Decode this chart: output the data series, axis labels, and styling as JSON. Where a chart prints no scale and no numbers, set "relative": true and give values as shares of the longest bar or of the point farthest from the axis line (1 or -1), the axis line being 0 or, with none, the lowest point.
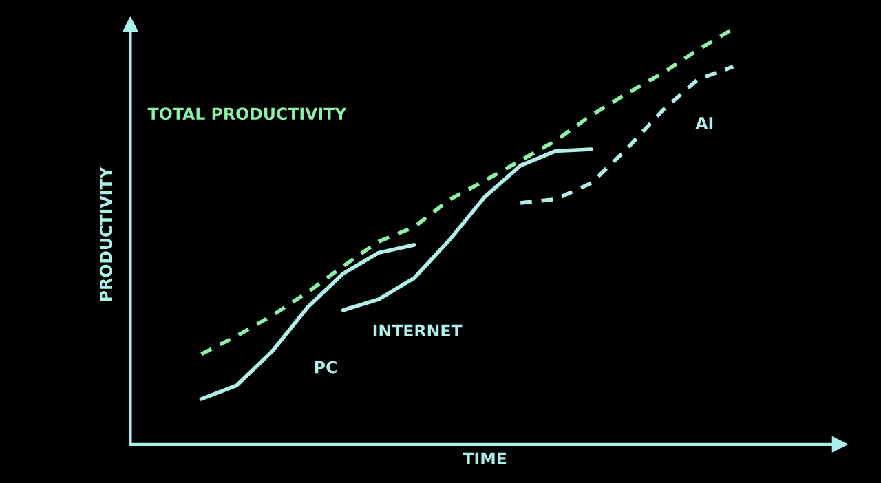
{
  "chart_data": {
    "type": "line",
    "relative": true,
    "xlabel": "TIME",
    "ylabel": "PRODUCTIVITY",
    "tick_labels": false,
    "categories": [
      null,
      null,
      null,
      null,
      null,
      null,
      null,
      null,
      null,
      null,
      null,
      null,
      null,
      null,
      null,
      null,
      null,
      null,
      null,
      null,
      null
    ],
    "series": [
      {
        "name": "TOTAL PRODUCTIVITY",
        "color": "#8ef0a8",
        "line_style": "dashed",
        "values": [
          null,
          null,
          0.217,
          0.261,
          0.31,
          0.366,
          0.429,
          0.488,
          0.523,
          0.589,
          0.635,
          0.683,
          0.731,
          0.792,
          0.844,
          0.893,
          0.949,
          1,
          null,
          null,
          null
        ]
      },
      {
        "name": "PC",
        "color": "#b0f0e8",
        "line_style": "solid",
        "values": [
          null,
          null,
          0.109,
          0.142,
          0.224,
          0.33,
          0.411,
          0.461,
          0.48,
          null,
          null,
          null,
          null,
          null,
          null,
          null,
          null,
          null,
          null,
          null,
          null
        ]
      },
      {
        "name": "INTERNET",
        "color": "#b0f0e8",
        "line_style": "solid",
        "values": [
          null,
          null,
          null,
          null,
          null,
          null,
          0.323,
          0.349,
          0.4,
          0.492,
          0.596,
          0.671,
          0.706,
          0.71,
          null,
          null,
          null,
          null,
          null,
          null,
          null
        ]
      },
      {
        "name": "AI",
        "color": "#b0f0e8",
        "line_style": "dashed",
        "values": [
          null,
          null,
          null,
          null,
          null,
          null,
          null,
          null,
          null,
          null,
          null,
          0.581,
          0.59,
          0.629,
          0.711,
          0.803,
          0.878,
          0.909,
          null,
          null,
          null
        ]
      }
    ]
  }
}
